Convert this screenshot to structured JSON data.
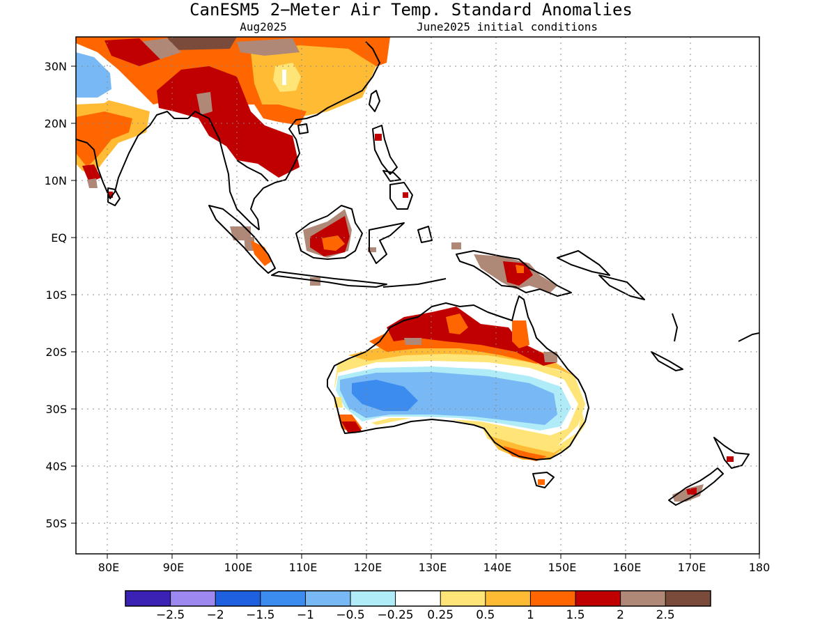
{
  "title": "CanESM5 2−Meter Air Temp. Standard Anomalies",
  "subtitle_left": "Aug2025",
  "subtitle_right": "June2025 initial conditions",
  "lat_labels": [
    "30N",
    "20N",
    "10N",
    "EQ",
    "10S",
    "20S",
    "30S",
    "40S",
    "50S"
  ],
  "lon_labels": [
    "80E",
    "90E",
    "100E",
    "110E",
    "120E",
    "130E",
    "140E",
    "150E",
    "160E",
    "170E",
    "180"
  ],
  "legend": {
    "labels": [
      "−2.5",
      "−2",
      "−1.5",
      "−1",
      "−0.5",
      "−0.25",
      "0.25",
      "0.5",
      "1",
      "1.5",
      "2",
      "2.5"
    ],
    "colors": [
      "#3b22b5",
      "#9d88f0",
      "#1e60e0",
      "#3c8cf0",
      "#78b8f5",
      "#b0ecf8",
      "#ffffff",
      "#ffe577",
      "#ffbb33",
      "#ff6600",
      "#c00000",
      "#b08878",
      "#7a4a3a"
    ]
  }
}
